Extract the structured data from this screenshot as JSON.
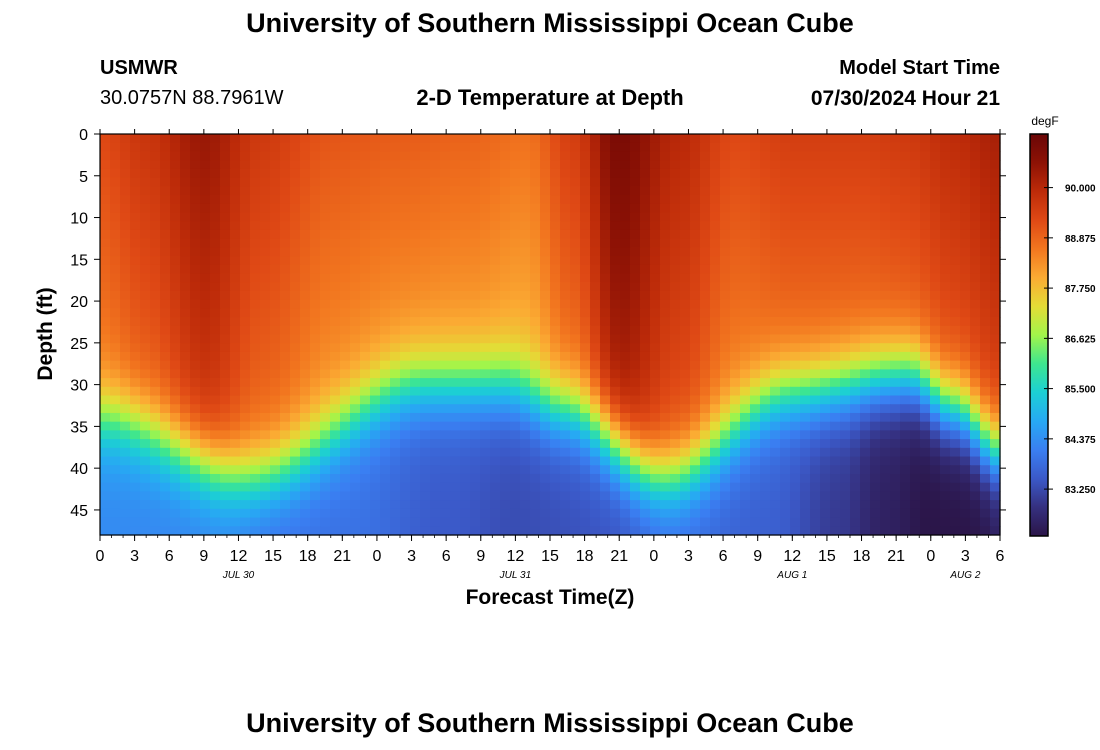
{
  "header": {
    "title": "University of Southern Mississippi Ocean Cube",
    "station": "USMWR",
    "coords": "30.0757N  88.7961W",
    "subtitle": "2-D Temperature at Depth",
    "model_label": "Model Start Time",
    "model_time": "07/30/2024 Hour 21"
  },
  "footer": {
    "title": "University of Southern Mississippi Ocean Cube"
  },
  "chart_data": {
    "type": "heatmap",
    "title": "2-D Temperature at Depth",
    "xlabel": "Forecast Time(Z)",
    "ylabel": "Depth (ft)",
    "x_range_hours": [
      0,
      78
    ],
    "x_tick_labels": [
      "0",
      "3",
      "6",
      "9",
      "12",
      "15",
      "18",
      "21",
      "0",
      "3",
      "6",
      "9",
      "12",
      "15",
      "18",
      "21",
      "0",
      "3",
      "6",
      "9",
      "12",
      "15",
      "18",
      "21",
      "0",
      "3",
      "6"
    ],
    "date_labels": [
      {
        "label": "JUL 30",
        "hour": 12
      },
      {
        "label": "JUL 31",
        "hour": 36
      },
      {
        "label": "AUG 1",
        "hour": 60
      },
      {
        "label": "AUG 2",
        "hour": 75
      }
    ],
    "y_range_ft": [
      0,
      48
    ],
    "y_ticks": [
      "0",
      "5",
      "10",
      "15",
      "20",
      "25",
      "30",
      "35",
      "40",
      "45"
    ],
    "colorbar": {
      "unit": "degF",
      "min": 82.2,
      "max": 91.2,
      "tick_values": [
        90.0,
        88.875,
        87.75,
        86.625,
        85.5,
        84.375,
        83.25
      ],
      "tick_labels": [
        "90.000",
        "88.875",
        "87.750",
        "86.625",
        "85.500",
        "84.375",
        "83.250"
      ],
      "colors": [
        "#2b1548",
        "#35307f",
        "#3b59c8",
        "#3a7ff2",
        "#27a9f3",
        "#1ccfd4",
        "#3ee68f",
        "#a2f54a",
        "#e4dc36",
        "#fbab33",
        "#f2761f",
        "#df4915",
        "#bd2b09",
        "#8d1205",
        "#6a0606"
      ]
    },
    "thermocline_depth_ft": {
      "hours": [
        0,
        13,
        28,
        35,
        40,
        49,
        60,
        70,
        74,
        78
      ],
      "depth": [
        34,
        41,
        30,
        30,
        33,
        41,
        31,
        29,
        33,
        38
      ]
    },
    "surface_temp_degF": {
      "hours": [
        0,
        4,
        9,
        14,
        20,
        26,
        32,
        37,
        41,
        45,
        50,
        55,
        60,
        66,
        70,
        74,
        78
      ],
      "temp": [
        89.3,
        89.7,
        90.4,
        89.6,
        89.1,
        89.0,
        88.9,
        88.7,
        89.5,
        90.9,
        90.0,
        89.3,
        89.5,
        89.5,
        89.6,
        89.9,
        90.2
      ]
    },
    "deep_temp_degF": {
      "hours": [
        0,
        10,
        15,
        22,
        30,
        36,
        44,
        50,
        58,
        64,
        68,
        72,
        76,
        78
      ],
      "temp": [
        84.3,
        84.2,
        83.9,
        83.9,
        83.5,
        83.3,
        83.4,
        83.8,
        83.6,
        83.0,
        82.5,
        82.2,
        82.2,
        82.4
      ]
    }
  }
}
